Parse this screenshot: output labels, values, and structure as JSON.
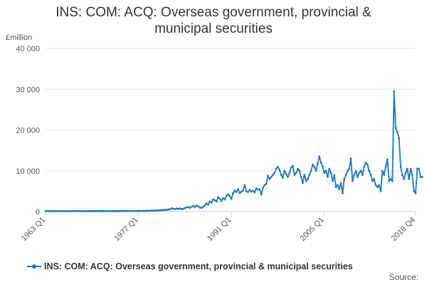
{
  "title": "INS: COM: ACQ: Overseas government, provincial & municipal securities",
  "y_unit": "£million",
  "legend_label": "INS: COM: ACQ: Overseas government, provincial & municipal securities",
  "source_label": "Source:",
  "series_color": "#1f77b4",
  "chart_data": {
    "type": "line",
    "title": "INS: COM: ACQ: Overseas government, provincial & municipal securities",
    "xlabel": "",
    "ylabel": "£million",
    "ylim": [
      0,
      40000
    ],
    "y_ticks": [
      0,
      10000,
      20000,
      30000,
      40000
    ],
    "y_tick_labels": [
      "0",
      "10 000",
      "20 000",
      "30 000",
      "40 000"
    ],
    "x_tick_labels": [
      "1963 Q1",
      "1977 Q1",
      "1991 Q1",
      "2005 Q1",
      "2018 Q4"
    ],
    "x_tick_index": [
      0,
      56,
      112,
      168,
      223
    ],
    "x_start": "1963 Q1",
    "x_end": "2018 Q4",
    "n_points": 224,
    "grid": true,
    "legend_position": "bottom",
    "series": [
      {
        "name": "INS: COM: ACQ: Overseas government, provincial & municipal securities",
        "values": [
          100,
          150,
          120,
          100,
          130,
          160,
          110,
          100,
          150,
          120,
          130,
          110,
          100,
          150,
          130,
          120,
          160,
          110,
          130,
          150,
          120,
          140,
          100,
          130,
          150,
          110,
          140,
          120,
          160,
          130,
          110,
          150,
          130,
          120,
          160,
          140,
          120,
          150,
          130,
          110,
          140,
          160,
          130,
          120,
          150,
          170,
          140,
          130,
          160,
          180,
          150,
          140,
          170,
          150,
          160,
          180,
          190,
          150,
          200,
          160,
          180,
          220,
          190,
          200,
          260,
          240,
          280,
          300,
          330,
          300,
          380,
          360,
          450,
          400,
          520,
          560,
          800,
          700,
          650,
          750,
          700,
          800,
          600,
          700,
          900,
          1000,
          1100,
          950,
          1200,
          1400,
          1100,
          1500,
          1300,
          1000,
          900,
          1200,
          1500,
          2000,
          1700,
          2500,
          2200,
          3000,
          2800,
          2500,
          3500,
          3200,
          2600,
          3300,
          3000,
          3800,
          4200,
          3800,
          3100,
          4500,
          5200,
          4800,
          5500,
          4600,
          4900,
          5200,
          6500,
          5000,
          4800,
          5300,
          4900,
          5100,
          4700,
          5700,
          5400,
          5500,
          4200,
          5800,
          6500,
          6800,
          8800,
          8000,
          8500,
          9000,
          9500,
          10500,
          11000,
          10200,
          9000,
          8300,
          10000,
          9200,
          8500,
          9500,
          10800,
          11200,
          9000,
          9500,
          10500,
          10000,
          8500,
          7000,
          9000,
          7500,
          8000,
          9000,
          10000,
          11500,
          11000,
          10000,
          11800,
          13500,
          12000,
          11000,
          9500,
          10000,
          8500,
          10500,
          9500,
          7500,
          9000,
          6000,
          6500,
          5500,
          7000,
          4500,
          8000,
          9000,
          10000,
          10500,
          13000,
          7500,
          9000,
          10000,
          8500,
          9500,
          10000,
          9000,
          11000,
          12000,
          11500,
          10000,
          9000,
          7500,
          8000,
          6500,
          6000,
          6500,
          5000,
          10000,
          9000,
          11000,
          12800,
          7500,
          8000,
          7500,
          29500,
          20500,
          19500,
          18000,
          11000,
          9000,
          8000,
          9500,
          10500,
          8000,
          10500,
          9000,
          5000,
          4500,
          10500,
          10500,
          8500,
          8500
        ]
      }
    ]
  }
}
